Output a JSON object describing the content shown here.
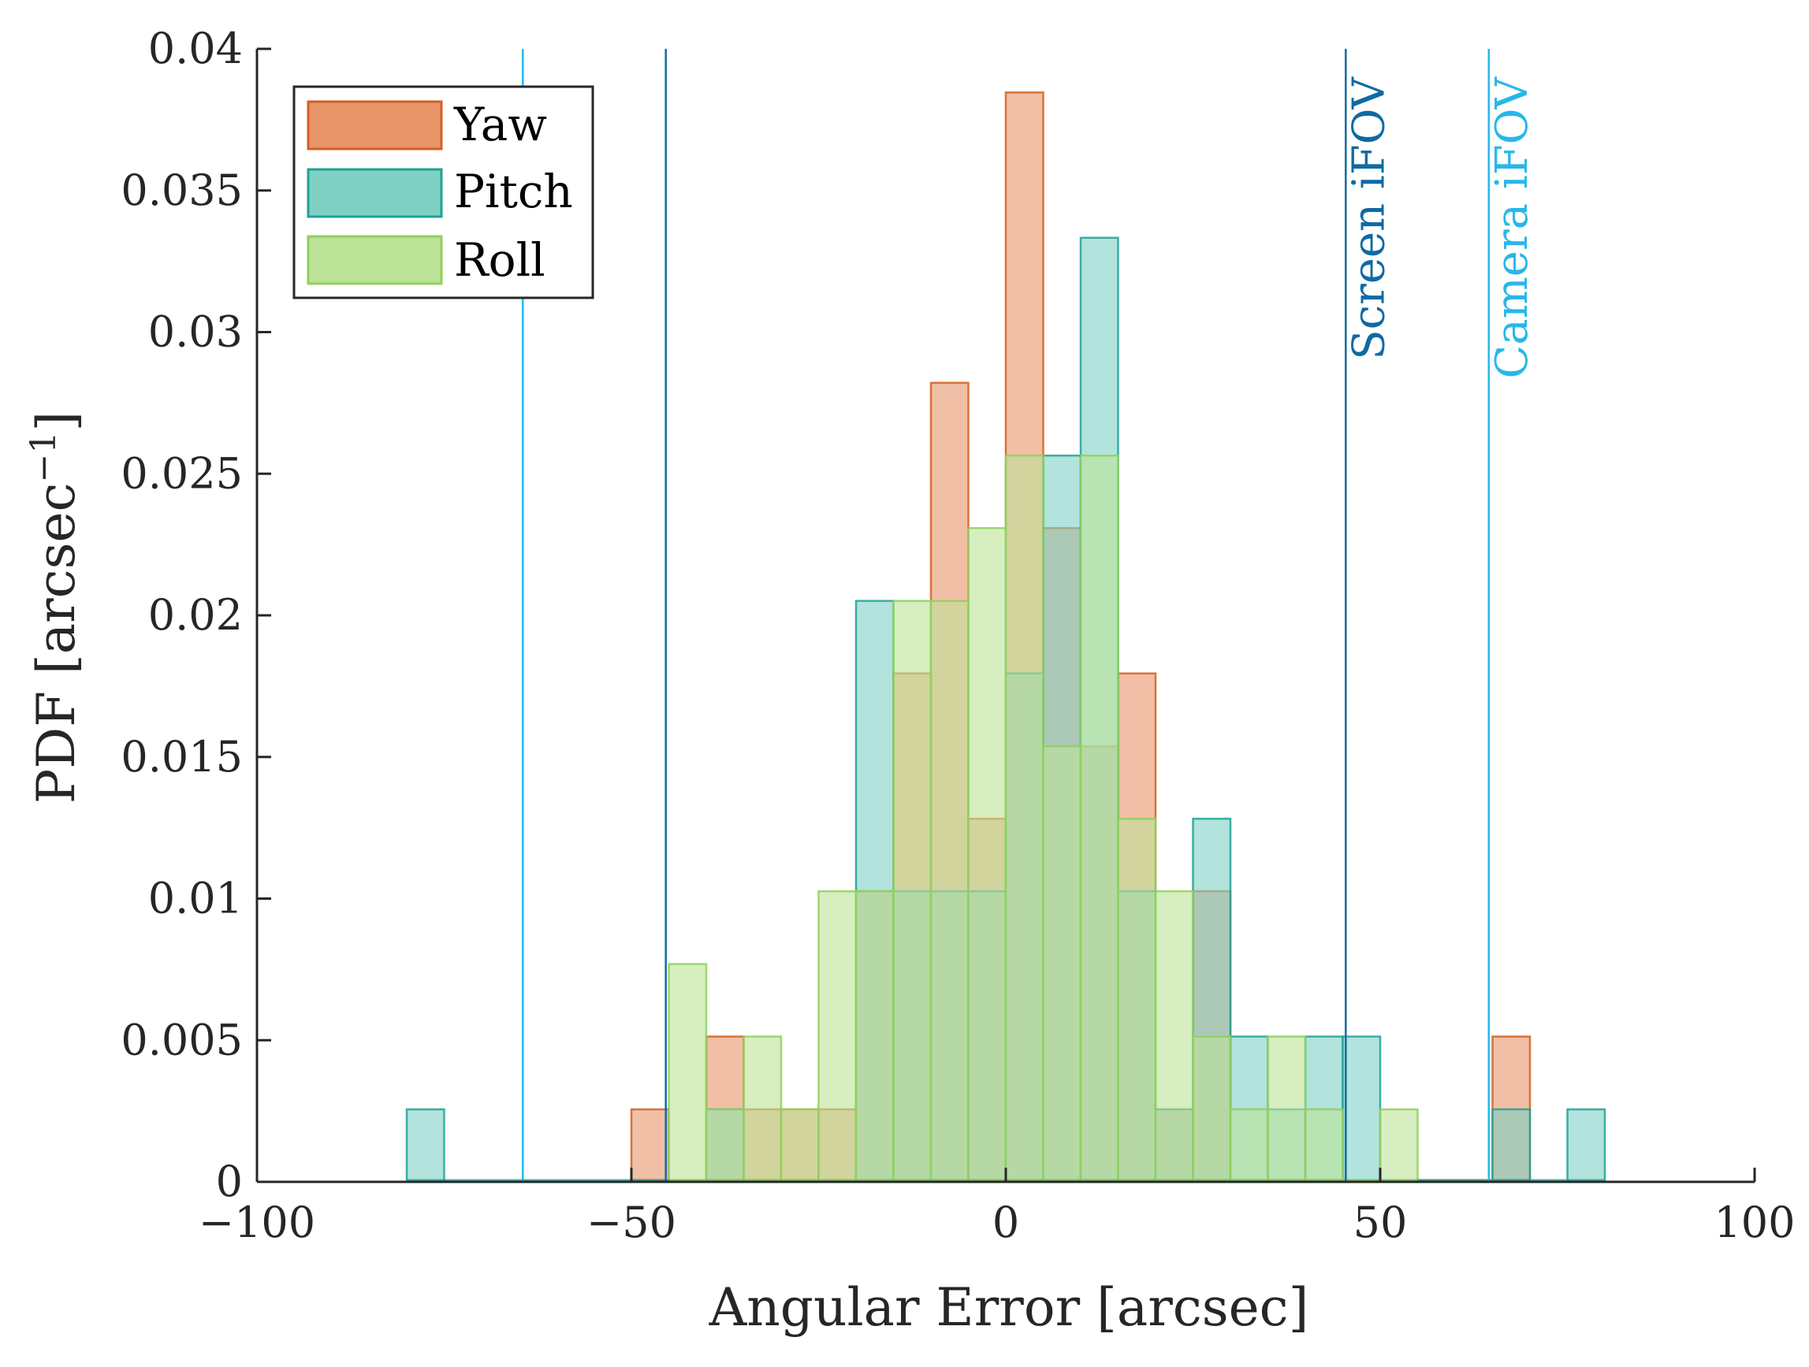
{
  "chart_data": {
    "type": "histogram",
    "title": "",
    "xlabel": "Angular Error [arcsec]",
    "ylabel_main": "PDF [arcsec",
    "ylabel_sup": "−1",
    "ylabel_close": "]",
    "xlim": [
      -100,
      100
    ],
    "ylim": [
      0,
      0.04
    ],
    "grid": false,
    "legend_position": "top-left",
    "bin_width": 5,
    "bin_edges_start": -80,
    "x_ticks": [
      -100,
      -50,
      0,
      50,
      100
    ],
    "x_tick_labels": [
      "−100",
      "−50",
      "0",
      "50",
      "100"
    ],
    "y_ticks": [
      0,
      0.005,
      0.01,
      0.015,
      0.02,
      0.025,
      0.03,
      0.035,
      0.04
    ],
    "y_tick_labels": [
      "0",
      "0.005",
      "0.01",
      "0.015",
      "0.02",
      "0.025",
      "0.03",
      "0.035",
      "0.04"
    ],
    "series": [
      {
        "name": "Yaw",
        "fill": "#e8956a",
        "stroke": "#d45f1f",
        "bins": [
          {
            "x0": -50,
            "value": 0.00256
          },
          {
            "x0": -45,
            "value": 0
          },
          {
            "x0": -40,
            "value": 0.00513
          },
          {
            "x0": -35,
            "value": 0.00256
          },
          {
            "x0": -30,
            "value": 0.00256
          },
          {
            "x0": -25,
            "value": 0.00256
          },
          {
            "x0": -20,
            "value": 0.01026
          },
          {
            "x0": -15,
            "value": 0.01795
          },
          {
            "x0": -10,
            "value": 0.02821
          },
          {
            "x0": -5,
            "value": 0.01282
          },
          {
            "x0": 0,
            "value": 0.03846
          },
          {
            "x0": 5,
            "value": 0.02308
          },
          {
            "x0": 10,
            "value": 0.01538
          },
          {
            "x0": 15,
            "value": 0.01795
          },
          {
            "x0": 20,
            "value": 0.00256
          },
          {
            "x0": 25,
            "value": 0.01026
          },
          {
            "x0": 30,
            "value": 0
          },
          {
            "x0": 35,
            "value": 0
          },
          {
            "x0": 40,
            "value": 0
          },
          {
            "x0": 45,
            "value": 0
          },
          {
            "x0": 50,
            "value": 0
          },
          {
            "x0": 55,
            "value": 0
          },
          {
            "x0": 60,
            "value": 0
          },
          {
            "x0": 65,
            "value": 0.00513
          }
        ]
      },
      {
        "name": "Pitch",
        "fill": "#7fd1c4",
        "stroke": "#1fa196",
        "bins": [
          {
            "x0": -80,
            "value": 0.00256
          },
          {
            "x0": -75,
            "value": 0
          },
          {
            "x0": -70,
            "value": 0
          },
          {
            "x0": -65,
            "value": 0
          },
          {
            "x0": -60,
            "value": 0
          },
          {
            "x0": -55,
            "value": 0
          },
          {
            "x0": -50,
            "value": 0
          },
          {
            "x0": -45,
            "value": 0
          },
          {
            "x0": -40,
            "value": 0.00256
          },
          {
            "x0": -35,
            "value": 0
          },
          {
            "x0": -30,
            "value": 0
          },
          {
            "x0": -25,
            "value": 0
          },
          {
            "x0": -20,
            "value": 0.02051
          },
          {
            "x0": -15,
            "value": 0.01026
          },
          {
            "x0": -10,
            "value": 0.01026
          },
          {
            "x0": -5,
            "value": 0.01026
          },
          {
            "x0": 0,
            "value": 0.01795
          },
          {
            "x0": 5,
            "value": 0.02564
          },
          {
            "x0": 10,
            "value": 0.03333
          },
          {
            "x0": 15,
            "value": 0.01026
          },
          {
            "x0": 20,
            "value": 0.00256
          },
          {
            "x0": 25,
            "value": 0.01282
          },
          {
            "x0": 30,
            "value": 0.00513
          },
          {
            "x0": 35,
            "value": 0.00256
          },
          {
            "x0": 40,
            "value": 0.00513
          },
          {
            "x0": 45,
            "value": 0.00513
          },
          {
            "x0": 50,
            "value": 0
          },
          {
            "x0": 55,
            "value": 0
          },
          {
            "x0": 60,
            "value": 0
          },
          {
            "x0": 65,
            "value": 0.00256
          },
          {
            "x0": 70,
            "value": 0
          },
          {
            "x0": 75,
            "value": 0.00256
          }
        ]
      },
      {
        "name": "Roll",
        "fill": "#bde398",
        "stroke": "#8fd05c",
        "bins": [
          {
            "x0": -45,
            "value": 0.00769
          },
          {
            "x0": -40,
            "value": 0.00256
          },
          {
            "x0": -35,
            "value": 0.00513
          },
          {
            "x0": -30,
            "value": 0.00256
          },
          {
            "x0": -25,
            "value": 0.01026
          },
          {
            "x0": -20,
            "value": 0.01026
          },
          {
            "x0": -15,
            "value": 0.02051
          },
          {
            "x0": -10,
            "value": 0.02051
          },
          {
            "x0": -5,
            "value": 0.02308
          },
          {
            "x0": 0,
            "value": 0.02564
          },
          {
            "x0": 5,
            "value": 0.01538
          },
          {
            "x0": 10,
            "value": 0.02564
          },
          {
            "x0": 15,
            "value": 0.01282
          },
          {
            "x0": 20,
            "value": 0.01026
          },
          {
            "x0": 25,
            "value": 0.00513
          },
          {
            "x0": 30,
            "value": 0.00256
          },
          {
            "x0": 35,
            "value": 0.00513
          },
          {
            "x0": 40,
            "value": 0.00256
          },
          {
            "x0": 45,
            "value": 0
          },
          {
            "x0": 50,
            "value": 0.00256
          }
        ]
      }
    ],
    "reference_lines": [
      {
        "name": "screen-ifov",
        "label": "Screen iFOV",
        "color": "#0f6aa3",
        "x_values": [
          -45.4,
          45.4
        ],
        "labeled_x": 45.4
      },
      {
        "name": "camera-ifov",
        "label": "Camera iFOV",
        "color": "#27b8e8",
        "x_values": [
          -64.5,
          64.5
        ],
        "labeled_x": 64.5
      }
    ],
    "legend": [
      "Yaw",
      "Pitch",
      "Roll"
    ]
  }
}
